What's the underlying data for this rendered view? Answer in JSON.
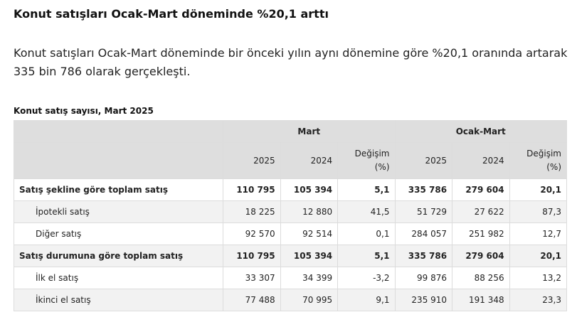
{
  "headline": "Konut satışları Ocak-Mart döneminde %20,1 arttı",
  "lead": "Konut satışları Ocak-Mart döneminde bir önceki yılın aynı dönemine göre %20,1 oranında artarak 335 bin 786 olarak gerçekleşti.",
  "table": {
    "caption": "Konut satış sayısı, Mart 2025",
    "group_headers": [
      "Mart",
      "Ocak-Mart"
    ],
    "column_headers": [
      "2025",
      "2024",
      "Değişim (%)",
      "2025",
      "2024",
      "Değişim (%)"
    ],
    "rows": [
      {
        "label": "Satış şekline göre toplam satış",
        "values": [
          "110 795",
          "105 394",
          "5,1",
          "335 786",
          "279 604",
          "20,1"
        ]
      },
      {
        "label": "İpotekli satış",
        "values": [
          "18 225",
          "12 880",
          "41,5",
          "51 729",
          "27 622",
          "87,3"
        ]
      },
      {
        "label": "Diğer satış",
        "values": [
          "92 570",
          "92 514",
          "0,1",
          "284 057",
          "251 982",
          "12,7"
        ]
      },
      {
        "label": "Satış durumuna göre toplam satış",
        "values": [
          "110 795",
          "105 394",
          "5,1",
          "335 786",
          "279 604",
          "20,1"
        ]
      },
      {
        "label": "İlk el satış",
        "values": [
          "33 307",
          "34 399",
          "-3,2",
          "99 876",
          "88 256",
          "13,2"
        ]
      },
      {
        "label": "İkinci el satış",
        "values": [
          "77 488",
          "70 995",
          "9,1",
          "235 910",
          "191 348",
          "23,3"
        ]
      }
    ]
  }
}
